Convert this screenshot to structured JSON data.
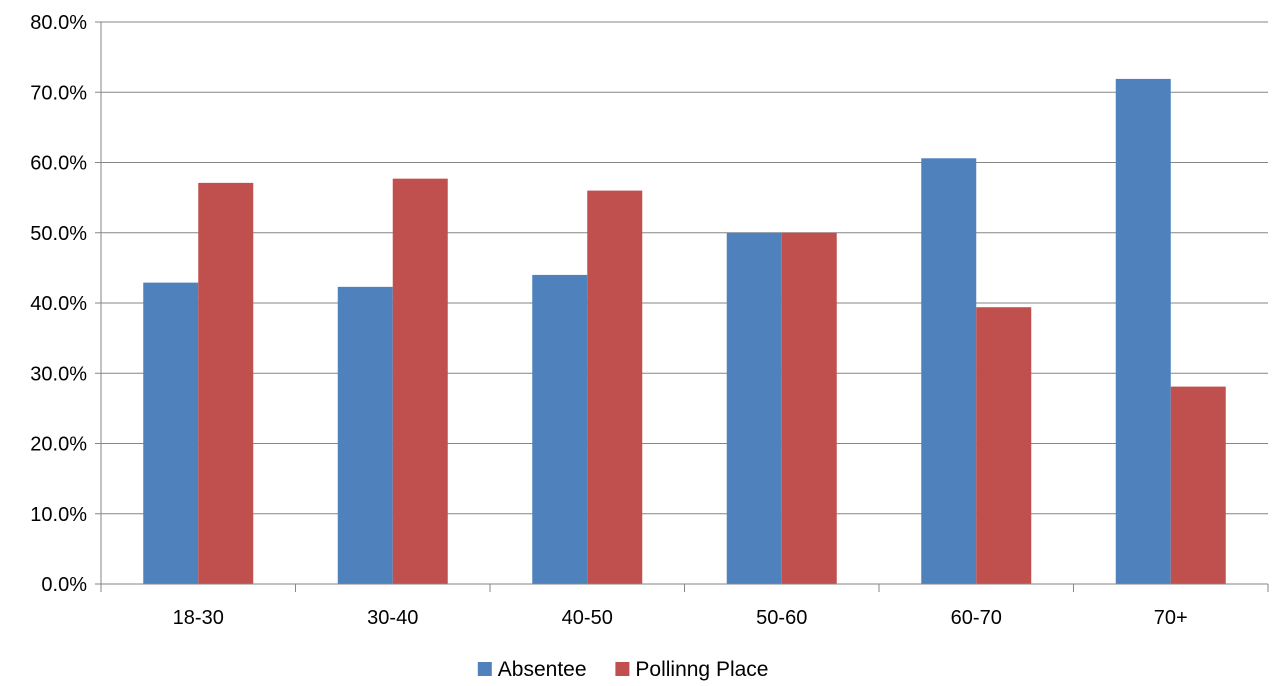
{
  "chart_data": {
    "type": "bar",
    "categories": [
      "18-30",
      "30-40",
      "40-50",
      "50-60",
      "60-70",
      "70+"
    ],
    "series": [
      {
        "name": "Absentee",
        "color": "#4F81BD",
        "values": [
          42.9,
          42.3,
          44.0,
          50.0,
          60.6,
          71.9
        ]
      },
      {
        "name": "Pollinng Place",
        "color": "#C0504D",
        "values": [
          57.1,
          57.7,
          56.0,
          50.0,
          39.4,
          28.1
        ]
      }
    ],
    "ylim": [
      0,
      80
    ],
    "yticks": [
      "0.0%",
      "10.0%",
      "20.0%",
      "30.0%",
      "40.0%",
      "50.0%",
      "60.0%",
      "70.0%",
      "80.0%"
    ],
    "grid": true,
    "legend_position": "bottom",
    "gridline_color": "#868686"
  }
}
